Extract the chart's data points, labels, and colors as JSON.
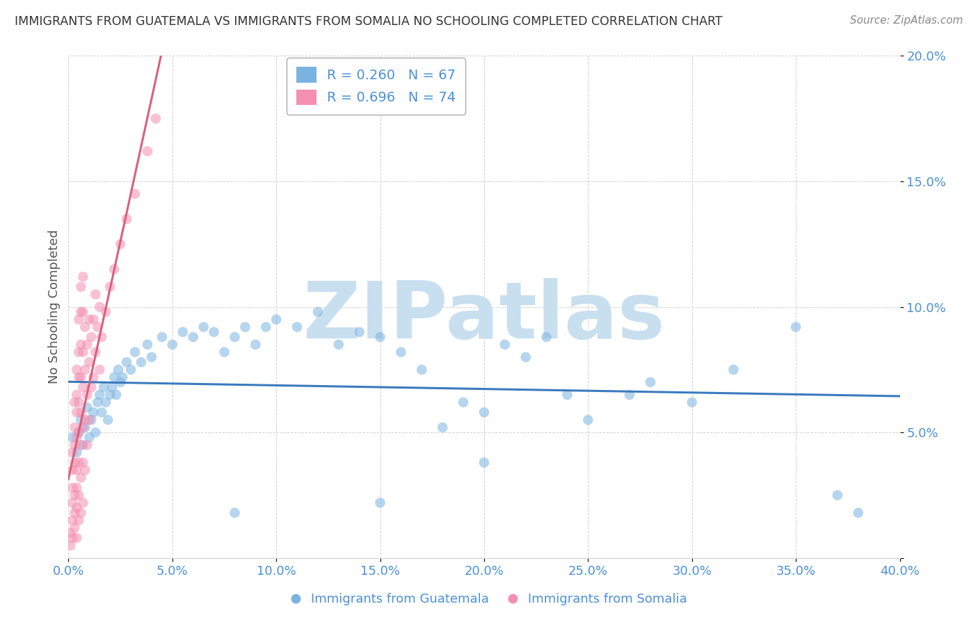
{
  "title": "IMMIGRANTS FROM GUATEMALA VS IMMIGRANTS FROM SOMALIA NO SCHOOLING COMPLETED CORRELATION CHART",
  "source": "Source: ZipAtlas.com",
  "ylabel": "No Schooling Completed",
  "xlim": [
    0.0,
    0.4
  ],
  "ylim": [
    0.0,
    0.2
  ],
  "xticks": [
    0.0,
    0.05,
    0.1,
    0.15,
    0.2,
    0.25,
    0.3,
    0.35,
    0.4
  ],
  "xticklabels": [
    "0.0%",
    "5.0%",
    "10.0%",
    "15.0%",
    "20.0%",
    "25.0%",
    "30.0%",
    "35.0%",
    "40.0%"
  ],
  "yticks": [
    0.0,
    0.05,
    0.1,
    0.15,
    0.2
  ],
  "yticklabels": [
    "",
    "5.0%",
    "10.0%",
    "15.0%",
    "20.0%"
  ],
  "legend_r1": "R = 0.260   N = 67",
  "legend_r2": "R = 0.696   N = 74",
  "guatemala_color": "#7ab3e0",
  "somalia_color": "#f48fb1",
  "trend_guatemala_color": "#3a7abf",
  "trend_somalia_color": "#d9607a",
  "watermark": "ZIPatlas",
  "watermark_color": "#c8dff0",
  "background_color": "#ffffff",
  "grid_color": "#cccccc",
  "axis_color": "#4a90d9",
  "title_color": "#333333",
  "guatemala_label": "Immigrants from Guatemala",
  "somalia_label": "Immigrants from Somalia",
  "guatemala_points": [
    [
      0.002,
      0.048
    ],
    [
      0.004,
      0.042
    ],
    [
      0.005,
      0.05
    ],
    [
      0.006,
      0.055
    ],
    [
      0.007,
      0.045
    ],
    [
      0.008,
      0.052
    ],
    [
      0.009,
      0.06
    ],
    [
      0.01,
      0.048
    ],
    [
      0.011,
      0.055
    ],
    [
      0.012,
      0.058
    ],
    [
      0.013,
      0.05
    ],
    [
      0.014,
      0.062
    ],
    [
      0.015,
      0.065
    ],
    [
      0.016,
      0.058
    ],
    [
      0.017,
      0.068
    ],
    [
      0.018,
      0.062
    ],
    [
      0.019,
      0.055
    ],
    [
      0.02,
      0.065
    ],
    [
      0.021,
      0.068
    ],
    [
      0.022,
      0.072
    ],
    [
      0.023,
      0.065
    ],
    [
      0.024,
      0.075
    ],
    [
      0.025,
      0.07
    ],
    [
      0.026,
      0.072
    ],
    [
      0.028,
      0.078
    ],
    [
      0.03,
      0.075
    ],
    [
      0.032,
      0.082
    ],
    [
      0.035,
      0.078
    ],
    [
      0.038,
      0.085
    ],
    [
      0.04,
      0.08
    ],
    [
      0.045,
      0.088
    ],
    [
      0.05,
      0.085
    ],
    [
      0.055,
      0.09
    ],
    [
      0.06,
      0.088
    ],
    [
      0.065,
      0.092
    ],
    [
      0.07,
      0.09
    ],
    [
      0.075,
      0.082
    ],
    [
      0.08,
      0.088
    ],
    [
      0.085,
      0.092
    ],
    [
      0.09,
      0.085
    ],
    [
      0.095,
      0.092
    ],
    [
      0.1,
      0.095
    ],
    [
      0.11,
      0.092
    ],
    [
      0.12,
      0.098
    ],
    [
      0.13,
      0.085
    ],
    [
      0.14,
      0.09
    ],
    [
      0.15,
      0.088
    ],
    [
      0.16,
      0.082
    ],
    [
      0.17,
      0.075
    ],
    [
      0.18,
      0.052
    ],
    [
      0.19,
      0.062
    ],
    [
      0.2,
      0.058
    ],
    [
      0.21,
      0.085
    ],
    [
      0.22,
      0.08
    ],
    [
      0.23,
      0.088
    ],
    [
      0.24,
      0.065
    ],
    [
      0.25,
      0.055
    ],
    [
      0.27,
      0.065
    ],
    [
      0.28,
      0.07
    ],
    [
      0.3,
      0.062
    ],
    [
      0.32,
      0.075
    ],
    [
      0.35,
      0.092
    ],
    [
      0.37,
      0.025
    ],
    [
      0.08,
      0.018
    ],
    [
      0.15,
      0.022
    ],
    [
      0.2,
      0.038
    ],
    [
      0.38,
      0.018
    ]
  ],
  "somalia_points": [
    [
      0.001,
      0.005
    ],
    [
      0.001,
      0.01
    ],
    [
      0.002,
      0.008
    ],
    [
      0.002,
      0.015
    ],
    [
      0.002,
      0.022
    ],
    [
      0.002,
      0.028
    ],
    [
      0.002,
      0.035
    ],
    [
      0.002,
      0.042
    ],
    [
      0.003,
      0.012
    ],
    [
      0.003,
      0.018
    ],
    [
      0.003,
      0.025
    ],
    [
      0.003,
      0.038
    ],
    [
      0.003,
      0.045
    ],
    [
      0.003,
      0.052
    ],
    [
      0.003,
      0.062
    ],
    [
      0.004,
      0.008
    ],
    [
      0.004,
      0.02
    ],
    [
      0.004,
      0.028
    ],
    [
      0.004,
      0.035
    ],
    [
      0.004,
      0.048
    ],
    [
      0.004,
      0.058
    ],
    [
      0.004,
      0.065
    ],
    [
      0.004,
      0.075
    ],
    [
      0.005,
      0.015
    ],
    [
      0.005,
      0.025
    ],
    [
      0.005,
      0.038
    ],
    [
      0.005,
      0.05
    ],
    [
      0.005,
      0.062
    ],
    [
      0.005,
      0.072
    ],
    [
      0.005,
      0.082
    ],
    [
      0.005,
      0.095
    ],
    [
      0.006,
      0.018
    ],
    [
      0.006,
      0.032
    ],
    [
      0.006,
      0.045
    ],
    [
      0.006,
      0.058
    ],
    [
      0.006,
      0.072
    ],
    [
      0.006,
      0.085
    ],
    [
      0.006,
      0.098
    ],
    [
      0.006,
      0.108
    ],
    [
      0.007,
      0.022
    ],
    [
      0.007,
      0.038
    ],
    [
      0.007,
      0.052
    ],
    [
      0.007,
      0.068
    ],
    [
      0.007,
      0.082
    ],
    [
      0.007,
      0.098
    ],
    [
      0.007,
      0.112
    ],
    [
      0.008,
      0.035
    ],
    [
      0.008,
      0.055
    ],
    [
      0.008,
      0.075
    ],
    [
      0.008,
      0.092
    ],
    [
      0.009,
      0.045
    ],
    [
      0.009,
      0.065
    ],
    [
      0.009,
      0.085
    ],
    [
      0.01,
      0.055
    ],
    [
      0.01,
      0.078
    ],
    [
      0.01,
      0.095
    ],
    [
      0.011,
      0.068
    ],
    [
      0.011,
      0.088
    ],
    [
      0.012,
      0.072
    ],
    [
      0.012,
      0.095
    ],
    [
      0.013,
      0.082
    ],
    [
      0.013,
      0.105
    ],
    [
      0.014,
      0.092
    ],
    [
      0.015,
      0.075
    ],
    [
      0.015,
      0.1
    ],
    [
      0.016,
      0.088
    ],
    [
      0.018,
      0.098
    ],
    [
      0.02,
      0.108
    ],
    [
      0.022,
      0.115
    ],
    [
      0.025,
      0.125
    ],
    [
      0.028,
      0.135
    ],
    [
      0.032,
      0.145
    ],
    [
      0.038,
      0.162
    ],
    [
      0.042,
      0.175
    ]
  ]
}
